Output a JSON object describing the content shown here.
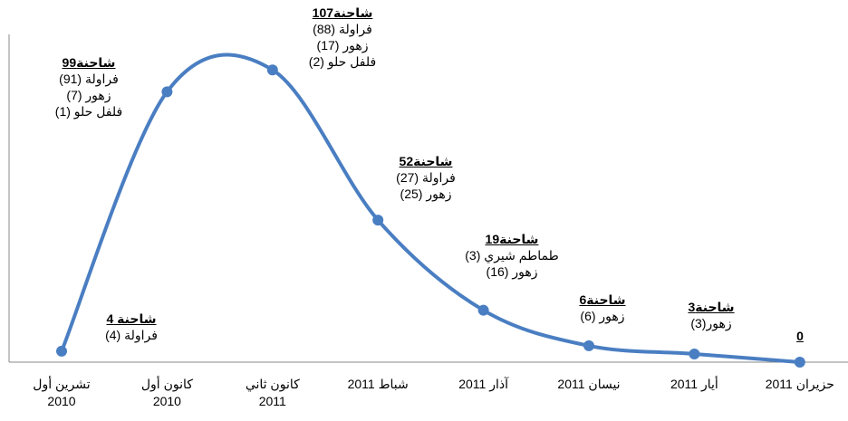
{
  "chart_data": {
    "type": "line",
    "categories": [
      "تشرين أول\n2010",
      "كانون أول\n2010",
      "كانون ثاني\n2011",
      "شباط 2011",
      "آذار 2011",
      "نيسان 2011",
      "أيار 2011",
      "حزيران 2011"
    ],
    "values": [
      4,
      99,
      107,
      52,
      19,
      6,
      3,
      0
    ],
    "value_labels": [
      "شاحنة 4",
      "99شاحنة",
      "107شاحنة",
      "52شاحنة",
      "19شاحنة",
      "6شاحنة",
      "3شاحنة",
      "0"
    ],
    "annotations": [
      [
        "(4) فراولة"
      ],
      [
        "(91) فراولة",
        "(7) زهور",
        "(1) فلفل حلو"
      ],
      [
        "(88) فراولة",
        "(17) زهور",
        "(2) فلفل حلو"
      ],
      [
        "(27) فراولة",
        "(25) زهور"
      ],
      [
        "(3) طماطم شيري",
        "(16) زهور"
      ],
      [
        "(6) زهور"
      ],
      [
        "(3)زهور"
      ],
      []
    ],
    "color": "#4a7ec2",
    "ylim": [
      0,
      120
    ],
    "smooth": true
  }
}
